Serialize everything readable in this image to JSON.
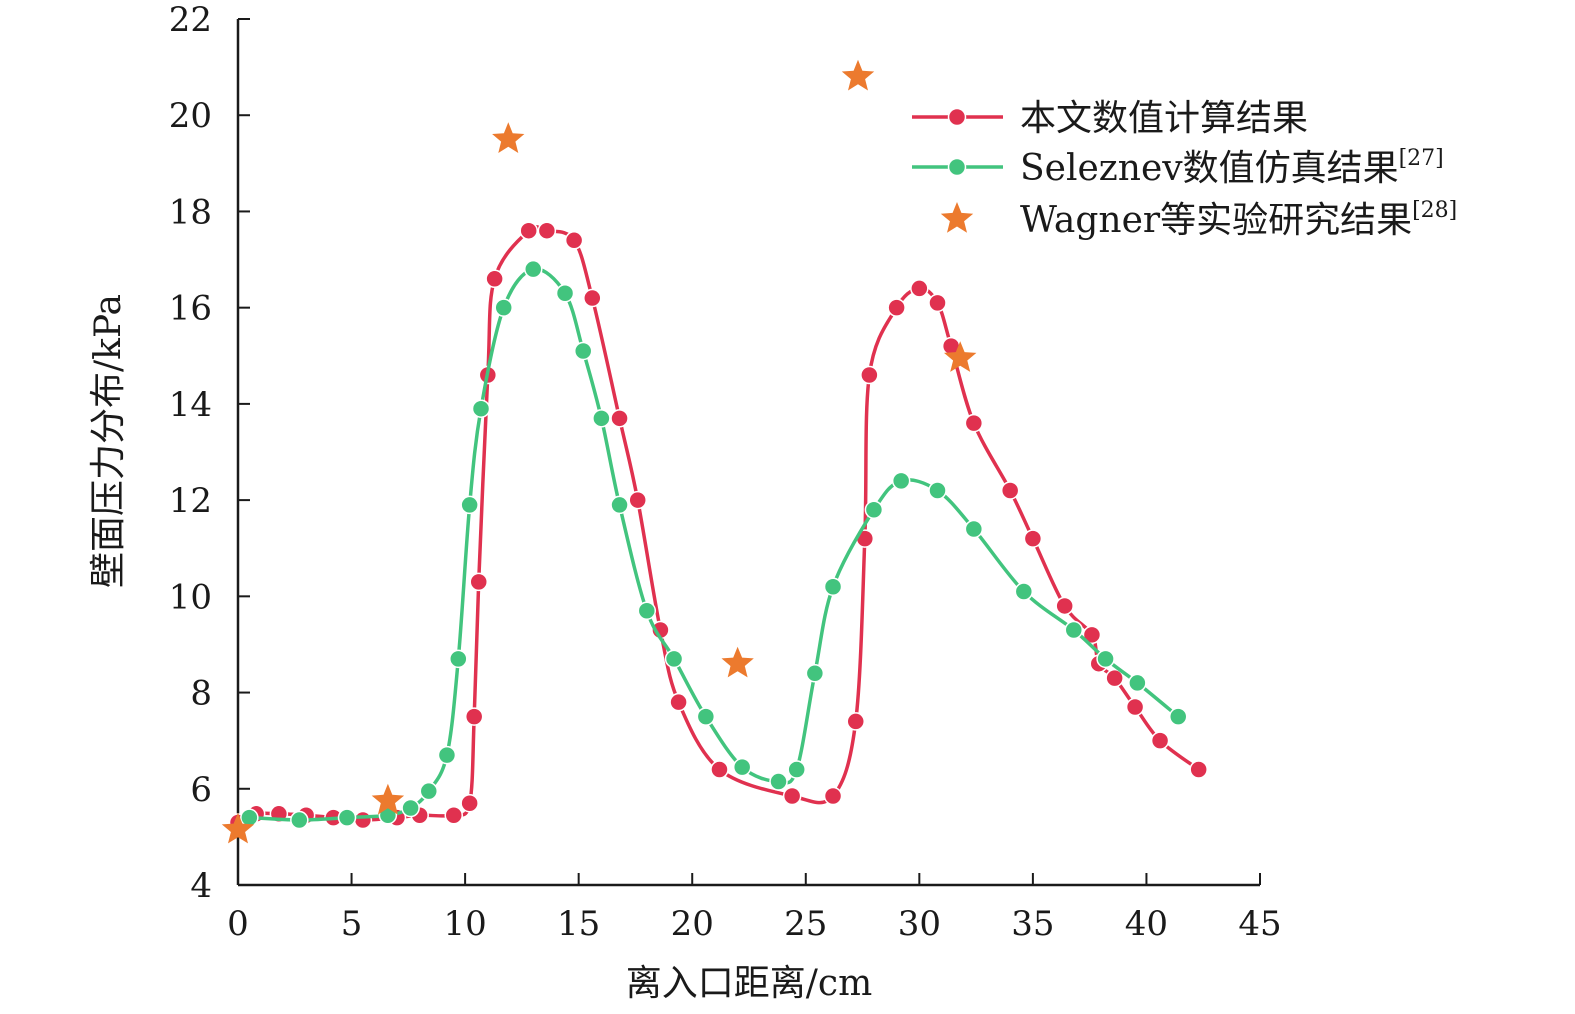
{
  "chart_data": {
    "type": "line",
    "xlabel": "离入口距离/cm",
    "ylabel": "壁面压力分布/kPa",
    "xlim": [
      0,
      45
    ],
    "ylim": [
      4,
      22
    ],
    "xticks": [
      0,
      5,
      10,
      15,
      20,
      25,
      30,
      35,
      40,
      45
    ],
    "yticks": [
      4,
      6,
      8,
      10,
      12,
      14,
      16,
      18,
      20,
      22
    ],
    "grid": false,
    "legend_position": "top-right",
    "series": [
      {
        "name": "本文数值计算结果",
        "ref": "",
        "color": "#e0314f",
        "marker": "circle",
        "line": true,
        "points": [
          [
            0.0,
            5.3
          ],
          [
            0.8,
            5.48
          ],
          [
            1.8,
            5.48
          ],
          [
            3.0,
            5.45
          ],
          [
            4.2,
            5.4
          ],
          [
            5.5,
            5.35
          ],
          [
            7.0,
            5.4
          ],
          [
            8.0,
            5.45
          ],
          [
            9.5,
            5.45
          ],
          [
            10.2,
            5.7
          ],
          [
            10.4,
            7.5
          ],
          [
            10.6,
            10.3
          ],
          [
            11.0,
            14.6
          ],
          [
            11.3,
            16.6
          ],
          [
            12.8,
            17.6
          ],
          [
            13.6,
            17.6
          ],
          [
            14.8,
            17.4
          ],
          [
            15.6,
            16.2
          ],
          [
            16.8,
            13.7
          ],
          [
            17.6,
            12.0
          ],
          [
            18.6,
            9.3
          ],
          [
            19.4,
            7.8
          ],
          [
            21.2,
            6.4
          ],
          [
            24.4,
            5.85
          ],
          [
            26.2,
            5.85
          ],
          [
            27.2,
            7.4
          ],
          [
            27.6,
            11.2
          ],
          [
            27.8,
            14.6
          ],
          [
            29.0,
            16.0
          ],
          [
            30.0,
            16.4
          ],
          [
            30.8,
            16.1
          ],
          [
            31.4,
            15.2
          ],
          [
            32.4,
            13.6
          ],
          [
            34.0,
            12.2
          ],
          [
            35.0,
            11.2
          ],
          [
            36.4,
            9.8
          ],
          [
            37.6,
            9.2
          ],
          [
            37.9,
            8.6
          ],
          [
            38.6,
            8.3
          ],
          [
            39.5,
            7.7
          ],
          [
            40.6,
            7.0
          ],
          [
            42.3,
            6.4
          ]
        ]
      },
      {
        "name": "Seleznev数值仿真结果",
        "ref": "[27]",
        "color": "#42c47e",
        "marker": "circle",
        "line": true,
        "points": [
          [
            0.5,
            5.4
          ],
          [
            2.7,
            5.35
          ],
          [
            4.8,
            5.4
          ],
          [
            6.6,
            5.45
          ],
          [
            7.6,
            5.6
          ],
          [
            8.4,
            5.95
          ],
          [
            9.2,
            6.7
          ],
          [
            9.7,
            8.7
          ],
          [
            10.2,
            11.9
          ],
          [
            10.7,
            13.9
          ],
          [
            11.7,
            16.0
          ],
          [
            13.0,
            16.8
          ],
          [
            14.4,
            16.3
          ],
          [
            15.2,
            15.1
          ],
          [
            16.0,
            13.7
          ],
          [
            16.8,
            11.9
          ],
          [
            18.0,
            9.7
          ],
          [
            19.2,
            8.7
          ],
          [
            20.6,
            7.5
          ],
          [
            22.2,
            6.45
          ],
          [
            23.8,
            6.15
          ],
          [
            24.6,
            6.4
          ],
          [
            25.4,
            8.4
          ],
          [
            26.2,
            10.2
          ],
          [
            28.0,
            11.8
          ],
          [
            29.2,
            12.4
          ],
          [
            30.8,
            12.2
          ],
          [
            32.4,
            11.4
          ],
          [
            34.6,
            10.1
          ],
          [
            36.8,
            9.3
          ],
          [
            38.2,
            8.7
          ],
          [
            39.6,
            8.2
          ],
          [
            41.4,
            7.5
          ]
        ]
      },
      {
        "name": "Wagner等实验研究结果",
        "ref": "[28]",
        "color": "#ec7a2e",
        "marker": "star",
        "line": false,
        "points": [
          [
            0.0,
            5.15
          ],
          [
            6.6,
            5.75
          ],
          [
            11.9,
            19.5
          ],
          [
            22.0,
            8.6
          ],
          [
            27.3,
            20.8
          ],
          [
            31.8,
            14.95
          ]
        ]
      }
    ]
  }
}
